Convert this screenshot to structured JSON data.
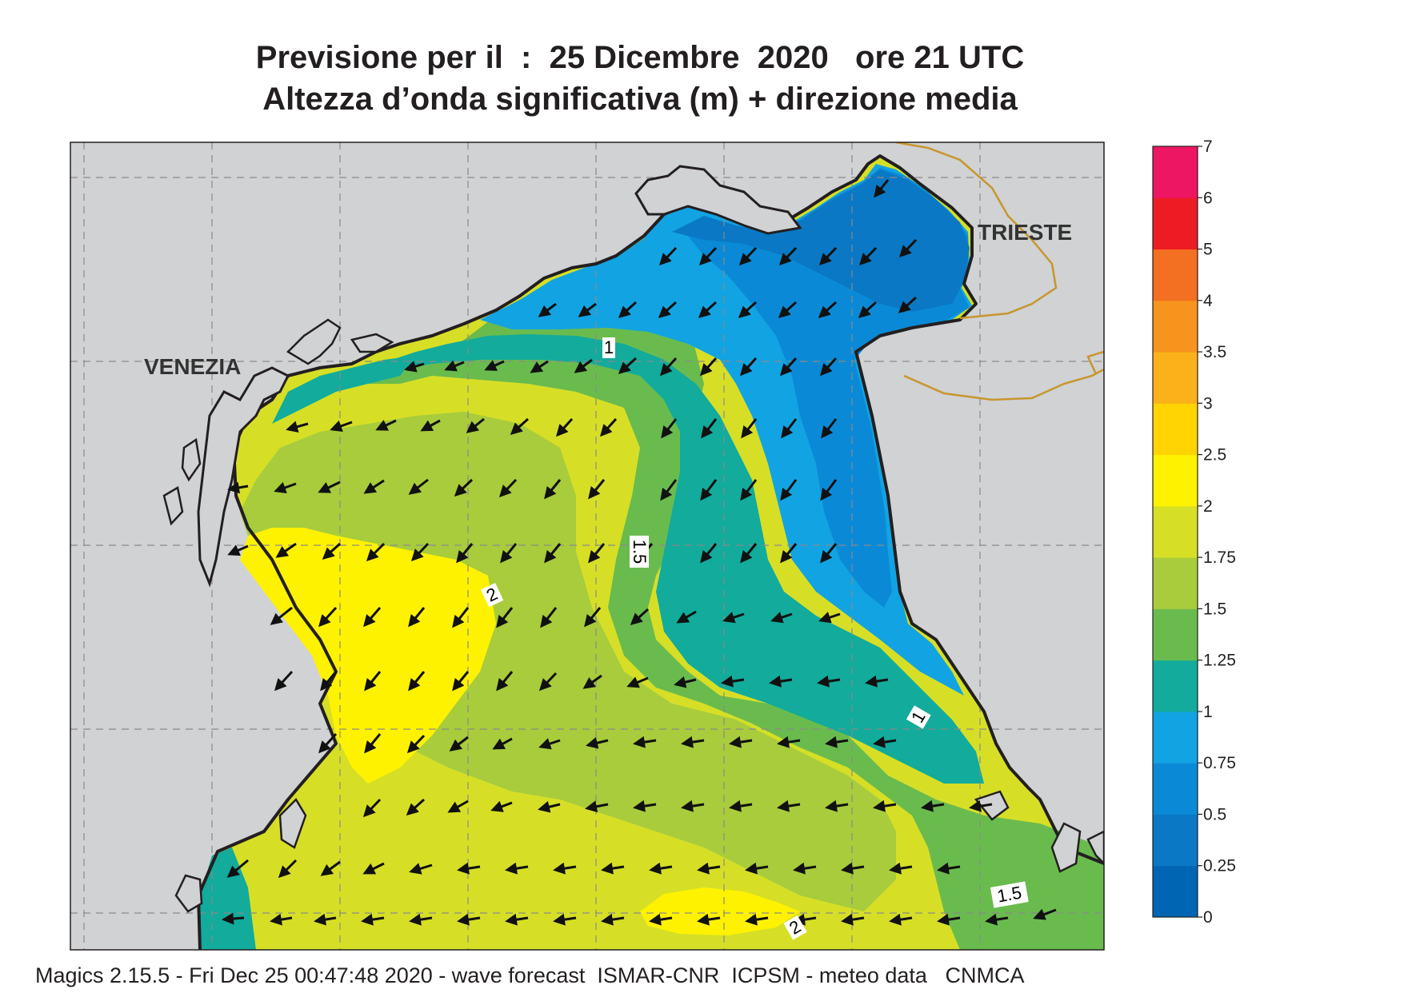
{
  "header": {
    "title_line1": "Previsione per il  :  25 Dicembre  2020   ore 21 UTC",
    "title_line2": "Altezza d’onda significativa (m) + direzione media"
  },
  "map": {
    "places": [
      "VENEZIA",
      "TRIESTE"
    ],
    "contour_labels": [
      "1",
      "1.5",
      "2",
      "1",
      "1.5",
      "2"
    ],
    "arrow_direction": "south-west"
  },
  "colorbar": {
    "ticks": [
      "0",
      "0.25",
      "0.5",
      "0.75",
      "1",
      "1.25",
      "1.5",
      "1.75",
      "2",
      "2.5",
      "3",
      "3.5",
      "4",
      "5",
      "6",
      "7"
    ],
    "colors": [
      "#0066b4",
      "#0a78c4",
      "#0a8ad6",
      "#12a3e2",
      "#12ab9c",
      "#6abb4e",
      "#a8cc3c",
      "#d6df26",
      "#fff200",
      "#ffd400",
      "#fbb21a",
      "#f7941d",
      "#f36f21",
      "#ed1c24",
      "#ed1663"
    ]
  },
  "colors": {
    "land": "#d0d2d3",
    "coast": "#231f20",
    "border": "#c8962e",
    "grid": "#8a8a8a"
  },
  "footer": {
    "text": "Magics 2.15.5 - Fri Dec 25 00:47:48 2020 - wave forecast  ISMAR-CNR  ICPSM - meteo data   CNMCA"
  }
}
